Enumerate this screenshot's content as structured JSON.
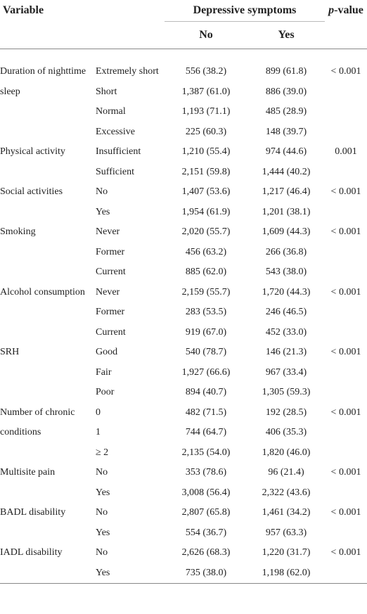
{
  "header": {
    "variable": "Variable",
    "depressive_symptoms": "Depressive symptoms",
    "p_value": {
      "italic": "p",
      "rest": "-value"
    },
    "no": "No",
    "yes": "Yes"
  },
  "groups": [
    {
      "variable": "Duration of nighttime sleep",
      "p_value": "< 0.001",
      "levels": [
        {
          "level": "Extremely short",
          "no": "556 (38.2)",
          "yes": "899 (61.8)"
        },
        {
          "level": "Short",
          "no": "1,387 (61.0)",
          "yes": "886 (39.0)"
        },
        {
          "level": "Normal",
          "no": "1,193 (71.1)",
          "yes": "485 (28.9)"
        },
        {
          "level": "Excessive",
          "no": "225 (60.3)",
          "yes": "148 (39.7)"
        }
      ]
    },
    {
      "variable": "Physical activity",
      "p_value": "0.001",
      "levels": [
        {
          "level": "Insufficient",
          "no": "1,210 (55.4)",
          "yes": "974 (44.6)"
        },
        {
          "level": "Sufficient",
          "no": "2,151 (59.8)",
          "yes": "1,444 (40.2)"
        }
      ]
    },
    {
      "variable": "Social activities",
      "p_value": "< 0.001",
      "levels": [
        {
          "level": "No",
          "no": "1,407 (53.6)",
          "yes": "1,217 (46.4)"
        },
        {
          "level": "Yes",
          "no": "1,954 (61.9)",
          "yes": "1,201 (38.1)"
        }
      ]
    },
    {
      "variable": "Smoking",
      "p_value": "< 0.001",
      "levels": [
        {
          "level": "Never",
          "no": "2,020 (55.7)",
          "yes": "1,609 (44.3)"
        },
        {
          "level": "Former",
          "no": "456 (63.2)",
          "yes": "266 (36.8)"
        },
        {
          "level": "Current",
          "no": "885 (62.0)",
          "yes": "543 (38.0)"
        }
      ]
    },
    {
      "variable": "Alcohol consumption",
      "p_value": "< 0.001",
      "levels": [
        {
          "level": "Never",
          "no": "2,159 (55.7)",
          "yes": "1,720 (44.3)"
        },
        {
          "level": "Former",
          "no": "283 (53.5)",
          "yes": "246 (46.5)"
        },
        {
          "level": "Current",
          "no": "919 (67.0)",
          "yes": "452 (33.0)"
        }
      ]
    },
    {
      "variable": "SRH",
      "p_value": "< 0.001",
      "levels": [
        {
          "level": "Good",
          "no": "540 (78.7)",
          "yes": "146 (21.3)"
        },
        {
          "level": "Fair",
          "no": "1,927 (66.6)",
          "yes": "967 (33.4)"
        },
        {
          "level": "Poor",
          "no": "894 (40.7)",
          "yes": "1,305 (59.3)"
        }
      ]
    },
    {
      "variable": "Number of chronic conditions",
      "p_value": "< 0.001",
      "levels": [
        {
          "level": "0",
          "no": "482 (71.5)",
          "yes": "192 (28.5)"
        },
        {
          "level": "1",
          "no": "744 (64.7)",
          "yes": "406 (35.3)"
        },
        {
          "level": "≥ 2",
          "no": "2,135 (54.0)",
          "yes": "1,820 (46.0)"
        }
      ]
    },
    {
      "variable": "Multisite pain",
      "p_value": "< 0.001",
      "levels": [
        {
          "level": "No",
          "no": "353 (78.6)",
          "yes": "96 (21.4)"
        },
        {
          "level": "Yes",
          "no": "3,008 (56.4)",
          "yes": "2,322 (43.6)"
        }
      ]
    },
    {
      "variable": "BADL disability",
      "p_value": "< 0.001",
      "levels": [
        {
          "level": "No",
          "no": "2,807 (65.8)",
          "yes": "1,461 (34.2)"
        },
        {
          "level": "Yes",
          "no": "554 (36.7)",
          "yes": "957 (63.3)"
        }
      ]
    },
    {
      "variable": "IADL disability",
      "p_value": "< 0.001",
      "levels": [
        {
          "level": "No",
          "no": "2,626 (68.3)",
          "yes": "1,220 (31.7)"
        },
        {
          "level": "Yes",
          "no": "735 (38.0)",
          "yes": "1,198 (62.0)"
        }
      ]
    }
  ]
}
